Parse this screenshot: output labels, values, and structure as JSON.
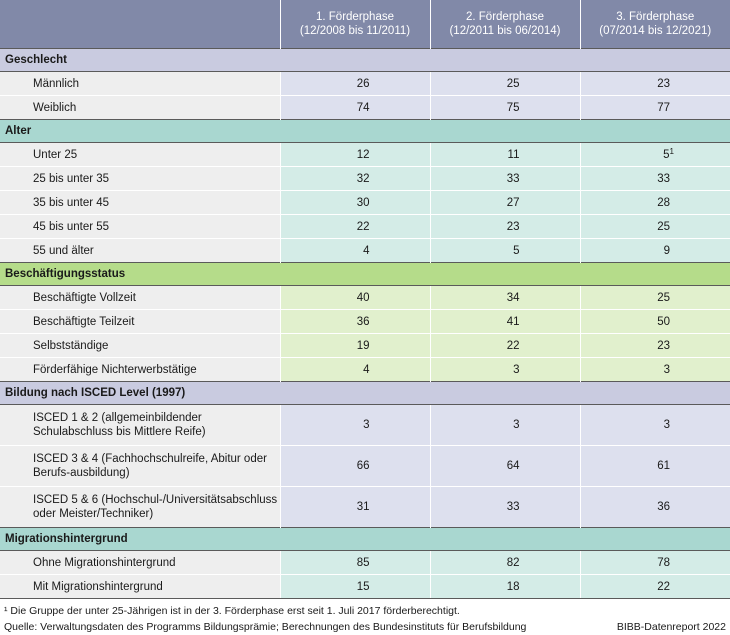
{
  "header": {
    "phases": [
      {
        "line1": "1. Förderphase",
        "line2": "(12/2008 bis 11/2011)"
      },
      {
        "line1": "2. Förderphase",
        "line2": "(12/2011 bis 06/2014)"
      },
      {
        "line1": "3. Förderphase",
        "line2": "(07/2014 bis 12/2021)"
      }
    ]
  },
  "groups": [
    {
      "title": "Geschlecht",
      "rows": [
        {
          "label": "Männlich",
          "values": [
            "26",
            "25",
            "23"
          ]
        },
        {
          "label": "Weiblich",
          "values": [
            "74",
            "75",
            "77"
          ]
        }
      ]
    },
    {
      "title": "Alter",
      "rows": [
        {
          "label": "Unter 25",
          "values": [
            "12",
            "11",
            "5"
          ],
          "note3": "1"
        },
        {
          "label": "25 bis unter 35",
          "values": [
            "32",
            "33",
            "33"
          ]
        },
        {
          "label": "35 bis unter 45",
          "values": [
            "30",
            "27",
            "28"
          ]
        },
        {
          "label": "45 bis unter 55",
          "values": [
            "22",
            "23",
            "25"
          ]
        },
        {
          "label": "55 und älter",
          "values": [
            "4",
            "5",
            "9"
          ]
        }
      ]
    },
    {
      "title": "Beschäftigungsstatus",
      "rows": [
        {
          "label": "Beschäftigte Vollzeit",
          "values": [
            "40",
            "34",
            "25"
          ]
        },
        {
          "label": "Beschäftigte Teilzeit",
          "values": [
            "36",
            "41",
            "50"
          ]
        },
        {
          "label": "Selbstständige",
          "values": [
            "19",
            "22",
            "23"
          ]
        },
        {
          "label": "Förderfähige Nichterwerbstätige",
          "values": [
            "4",
            "3",
            "3"
          ]
        }
      ]
    },
    {
      "title": "Bildung nach ISCED Level (1997)",
      "rows": [
        {
          "label": "ISCED 1 & 2 (allgemeinbildender Schulabschluss bis Mittlere Reife)",
          "values": [
            "3",
            "3",
            "3"
          ]
        },
        {
          "label": "ISCED 3 & 4 (Fachhochschulreife, Abitur oder Berufs-ausbildung)",
          "values": [
            "66",
            "64",
            "61"
          ]
        },
        {
          "label": "ISCED 5 & 6 (Hochschul-/Universitätsabschluss oder Meister/Techniker)",
          "values": [
            "31",
            "33",
            "36"
          ]
        }
      ]
    },
    {
      "title": "Migrationshintergrund",
      "rows": [
        {
          "label": "Ohne Migrationshintergrund",
          "values": [
            "85",
            "82",
            "78"
          ]
        },
        {
          "label": "Mit Migrationshintergrund",
          "values": [
            "15",
            "18",
            "22"
          ]
        }
      ]
    }
  ],
  "footer": {
    "footnote": "¹ Die Gruppe der unter 25-Jährigen ist in der 3. Förderphase erst seit 1. Juli 2017 förderberechtigt.",
    "source": "Quelle: Verwaltungsdaten des Programms Bildungsprämie; Berechnungen des Bundesinstituts für Berufsbildung",
    "credit": "BIBB-Datenreport 2022"
  }
}
